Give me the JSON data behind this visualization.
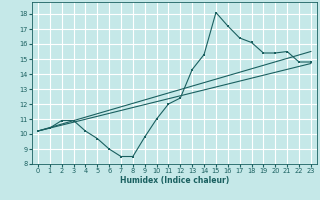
{
  "xlabel": "Humidex (Indice chaleur)",
  "bg_color": "#c5e8e8",
  "grid_color": "#ffffff",
  "line_color": "#1a6060",
  "xlim": [
    -0.5,
    23.5
  ],
  "ylim": [
    8.0,
    18.8
  ],
  "xticks": [
    0,
    1,
    2,
    3,
    4,
    5,
    6,
    7,
    8,
    9,
    10,
    11,
    12,
    13,
    14,
    15,
    16,
    17,
    18,
    19,
    20,
    21,
    22,
    23
  ],
  "yticks": [
    8,
    9,
    10,
    11,
    12,
    13,
    14,
    15,
    16,
    17,
    18
  ],
  "series1_x": [
    0,
    1,
    2,
    3,
    4,
    5,
    6,
    7,
    8,
    9,
    10,
    11,
    12,
    13,
    14,
    15,
    16,
    17,
    18,
    19,
    20,
    21,
    22,
    23
  ],
  "series1_y": [
    10.2,
    10.4,
    10.9,
    10.9,
    10.2,
    9.7,
    9.0,
    8.5,
    8.5,
    9.8,
    11.0,
    12.0,
    12.4,
    14.3,
    15.3,
    18.1,
    17.2,
    16.4,
    16.1,
    15.4,
    15.4,
    15.5,
    14.8,
    14.8
  ],
  "series2_x": [
    0,
    23
  ],
  "series2_y": [
    10.2,
    15.5
  ],
  "series3_x": [
    0,
    23
  ],
  "series3_y": [
    10.2,
    14.7
  ]
}
